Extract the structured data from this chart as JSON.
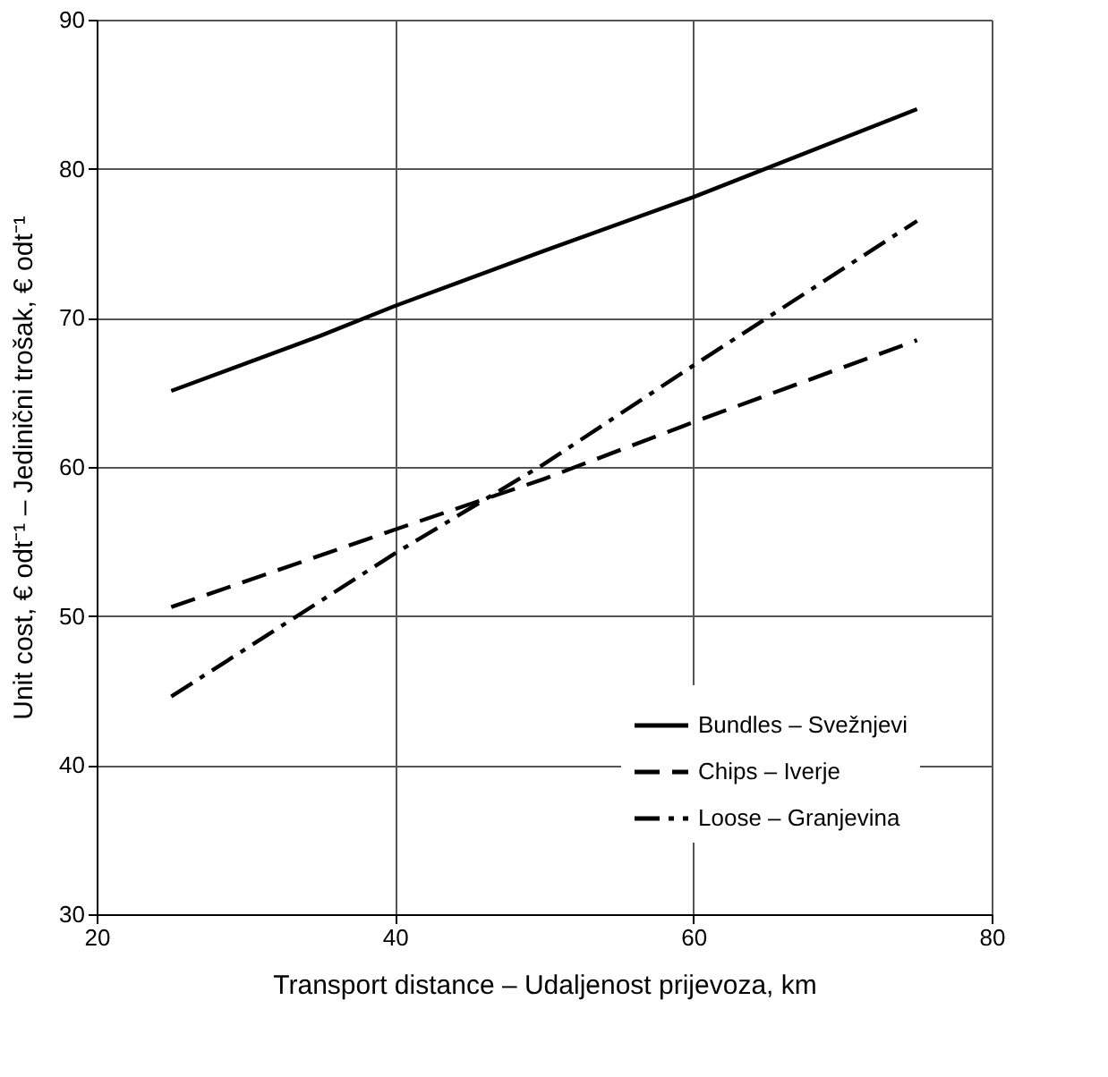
{
  "chart_data": {
    "type": "line",
    "xlabel": "Transport distance – Udaljenost prijevoza, km",
    "ylabel": "Unit cost, € odt⁻¹ – Jedinični trošak, € odt⁻¹",
    "xlim": [
      20,
      80
    ],
    "xticks": [
      20,
      40,
      60,
      80
    ],
    "ylim": [
      30,
      90
    ],
    "yticks": [
      30,
      40,
      50,
      60,
      70,
      80,
      90
    ],
    "grid": true,
    "legend": "bottom right",
    "marker": "none",
    "series": [
      {
        "name": "Bundles – Svežnjevi",
        "color": "#000000",
        "line_style": "solid",
        "x": [
          25,
          35,
          40,
          50,
          60,
          75
        ],
        "values": [
          65.1,
          68.8,
          70.8,
          74.5,
          78.1,
          84.0
        ]
      },
      {
        "name": "Chips – Iverje",
        "color": "#000000",
        "line_style": "dashed",
        "x": [
          25,
          40,
          50,
          60,
          75
        ],
        "values": [
          50.6,
          55.8,
          59.2,
          63.0,
          68.5
        ]
      },
      {
        "name": "Loose – Granjevina",
        "color": "#000000",
        "line_style": "dashdot",
        "x": [
          25,
          40,
          50,
          60,
          75
        ],
        "values": [
          44.6,
          54.2,
          60.2,
          66.8,
          76.5
        ]
      }
    ]
  }
}
